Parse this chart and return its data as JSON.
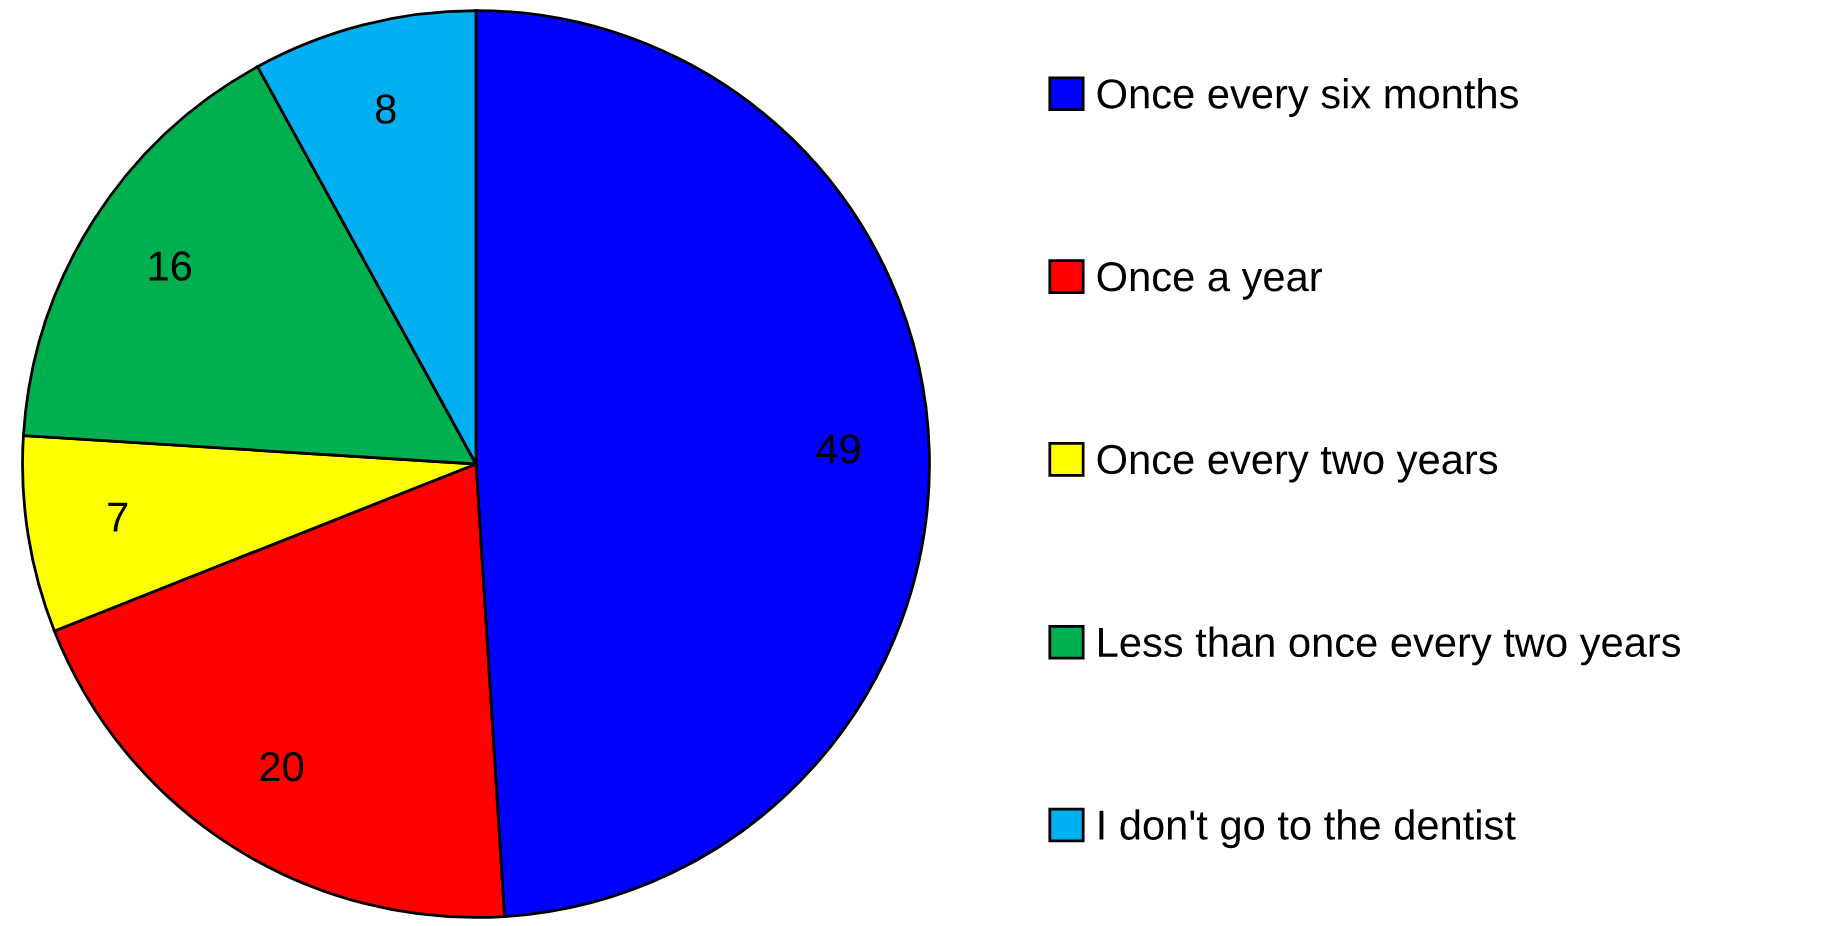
{
  "chart_data": {
    "type": "pie",
    "categories": [
      "Once every six months",
      "Once a year",
      "Once every two years",
      "Less than once every two years",
      "I don't go to the dentist"
    ],
    "values": [
      49,
      20,
      7,
      16,
      8
    ],
    "colors": [
      "#0000ff",
      "#ff0000",
      "#ffff00",
      "#00b050",
      "#00b0f0"
    ],
    "data_labels": true,
    "legend": "right"
  }
}
